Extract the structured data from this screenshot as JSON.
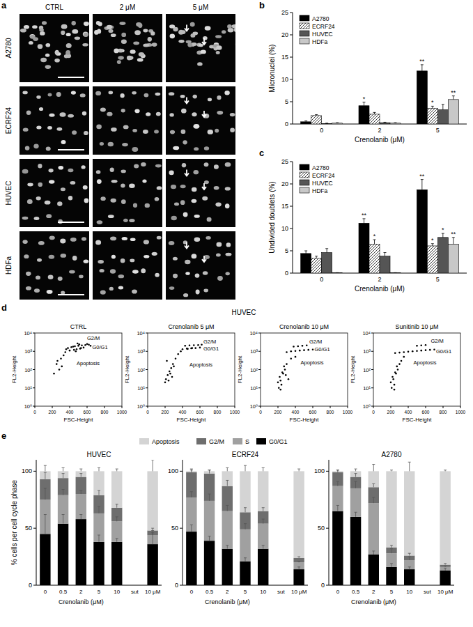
{
  "panels": [
    "a",
    "b",
    "c",
    "d",
    "e"
  ],
  "panel_a": {
    "columns": [
      "CTRL",
      "2 μM",
      "5 μM"
    ],
    "rows": [
      "A2780",
      "ECRF24",
      "HUVEC",
      "HDFa"
    ]
  },
  "panel_d_title": "HUVEC",
  "chart_data": [
    {
      "type": "bar",
      "y_label": "Micronuclei (%)",
      "x_label": "Crenolanib (μM)",
      "categories": [
        "0",
        "2",
        "5"
      ],
      "ylim": [
        0,
        25
      ],
      "yticks": [
        0,
        5,
        10,
        15,
        20,
        25
      ],
      "legend": "upper left",
      "series": [
        {
          "name": "A2780",
          "color": "#000000",
          "values": [
            0.5,
            4.1,
            11.9
          ],
          "errors": [
            0.2,
            0.8,
            1.4
          ],
          "significance": [
            null,
            "*",
            "**"
          ]
        },
        {
          "name": "ECRF24",
          "color": "#ffffff",
          "line_style": "hatched",
          "values": [
            1.9,
            2.2,
            3.5
          ],
          "errors": [
            0.2,
            0.4,
            0.5
          ],
          "significance": [
            null,
            null,
            "*"
          ]
        },
        {
          "name": "HUVEC",
          "color": "#555555",
          "values": [
            0.1,
            0.3,
            3.2
          ],
          "errors": [
            0.1,
            0.1,
            1.2
          ],
          "significance": [
            null,
            null,
            null
          ]
        },
        {
          "name": "HDFa",
          "color": "#c8c8c8",
          "values": [
            0.2,
            0.2,
            5.5
          ],
          "errors": [
            0.1,
            0.1,
            0.8
          ],
          "significance": [
            null,
            null,
            "**"
          ]
        }
      ]
    },
    {
      "type": "bar",
      "y_label": "Undivided doublets (%)",
      "x_label": "Crenolanib (μM)",
      "categories": [
        "0",
        "2",
        "5"
      ],
      "ylim": [
        0,
        25
      ],
      "yticks": [
        0,
        5,
        10,
        15,
        20,
        25
      ],
      "legend": "upper left",
      "series": [
        {
          "name": "A2780",
          "color": "#000000",
          "values": [
            4.4,
            11.2,
            18.7
          ],
          "errors": [
            0.6,
            1.0,
            2.3
          ],
          "significance": [
            null,
            "**",
            "**"
          ]
        },
        {
          "name": "ECRF24",
          "color": "#ffffff",
          "line_style": "hatched",
          "values": [
            3.3,
            6.5,
            6.1
          ],
          "errors": [
            0.5,
            1.0,
            0.5
          ],
          "significance": [
            null,
            "*",
            "*"
          ]
        },
        {
          "name": "HUVEC",
          "color": "#555555",
          "values": [
            4.6,
            3.8,
            8.0
          ],
          "errors": [
            0.9,
            0.8,
            0.9
          ],
          "significance": [
            null,
            null,
            "*"
          ]
        },
        {
          "name": "HDFa",
          "color": "#c8c8c8",
          "values": [
            0.1,
            0.1,
            6.5
          ],
          "errors": [
            0.0,
            0.0,
            1.5
          ],
          "significance": [
            null,
            null,
            "**"
          ]
        }
      ]
    },
    {
      "type": "scatter",
      "title": "CTRL",
      "x_label": "FSC-Height",
      "y_label": "FL2-Height",
      "log": "y",
      "xlim": [
        0,
        1000
      ],
      "xticks": [
        0,
        200,
        400,
        600,
        800,
        1000
      ],
      "ylim": [
        1,
        10000
      ],
      "yticks": [
        {
          "value": 1,
          "label": "10⁰"
        },
        {
          "value": 10,
          "label": "10¹"
        },
        {
          "value": 100,
          "label": "10²"
        },
        {
          "value": 1000,
          "label": "10³"
        },
        {
          "value": 10000,
          "label": "10⁴"
        }
      ],
      "annotations": [
        {
          "text": "G2/M",
          "x": 600,
          "y": 4200
        },
        {
          "text": "G0/G1",
          "x": 660,
          "y": 1300
        },
        {
          "text": "Apoptosis",
          "x": 480,
          "y": 180
        }
      ],
      "color": "#000000",
      "x": [
        380,
        420,
        460,
        500,
        540,
        580,
        620,
        450,
        480,
        520,
        560,
        400,
        440,
        600,
        510,
        470,
        530,
        360,
        640,
        490,
        250,
        300,
        330,
        280,
        220,
        350,
        260,
        310
      ],
      "y": [
        1500,
        1700,
        1900,
        2000,
        2100,
        2200,
        2300,
        1200,
        1300,
        1400,
        1600,
        1100,
        1800,
        2500,
        2400,
        1000,
        1500,
        1300,
        2000,
        2700,
        200,
        400,
        600,
        100,
        60,
        900,
        300,
        150
      ]
    },
    {
      "type": "scatter",
      "title": "Crenolanib 5 μM",
      "x_label": "FSC-Height",
      "y_label": "FL2-Height",
      "log": "y",
      "xlim": [
        0,
        1000
      ],
      "xticks": [
        0,
        200,
        400,
        600,
        800,
        1000
      ],
      "ylim": [
        1,
        10000
      ],
      "yticks": [
        {
          "value": 1,
          "label": "10⁰"
        },
        {
          "value": 10,
          "label": "10¹"
        },
        {
          "value": 100,
          "label": "10²"
        },
        {
          "value": 1000,
          "label": "10³"
        },
        {
          "value": 10000,
          "label": "10⁴"
        }
      ],
      "annotations": [
        {
          "text": "G2/M",
          "x": 640,
          "y": 2600
        },
        {
          "text": "G0/G1",
          "x": 640,
          "y": 1100
        },
        {
          "text": "Apoptosis",
          "x": 480,
          "y": 150
        }
      ],
      "color": "#000000",
      "x": [
        400,
        450,
        500,
        550,
        600,
        430,
        480,
        530,
        580,
        620,
        460,
        510,
        210,
        230,
        250,
        270,
        290,
        220,
        260,
        300,
        240,
        320,
        350,
        280,
        200,
        380
      ],
      "y": [
        1300,
        1400,
        1450,
        1500,
        1600,
        2000,
        2100,
        2150,
        2200,
        2300,
        1350,
        1500,
        30,
        50,
        80,
        120,
        200,
        300,
        60,
        150,
        25,
        400,
        700,
        40,
        20,
        1000
      ]
    },
    {
      "type": "scatter",
      "title": "Crenolanib 10 μM",
      "x_label": "FSC-Height",
      "y_label": "FL2-Height",
      "log": "y",
      "xlim": [
        0,
        1000
      ],
      "xticks": [
        0,
        200,
        400,
        600,
        800,
        1000
      ],
      "ylim": [
        1,
        10000
      ],
      "yticks": [
        {
          "value": 1,
          "label": "10⁰"
        },
        {
          "value": 10,
          "label": "10¹"
        },
        {
          "value": 100,
          "label": "10²"
        },
        {
          "value": 1000,
          "label": "10³"
        },
        {
          "value": 10000,
          "label": "10⁴"
        }
      ],
      "annotations": [
        {
          "text": "G2/M",
          "x": 560,
          "y": 2800
        },
        {
          "text": "G0/G1",
          "x": 620,
          "y": 1000
        },
        {
          "text": "Apoptosis",
          "x": 460,
          "y": 200
        }
      ],
      "color": "#000000",
      "x": [
        300,
        350,
        400,
        450,
        500,
        550,
        600,
        380,
        430,
        480,
        530,
        200,
        220,
        240,
        260,
        280,
        300,
        320,
        210,
        230,
        250,
        270,
        290,
        350,
        400,
        230
      ],
      "y": [
        900,
        1000,
        1050,
        1100,
        1150,
        1200,
        1250,
        1800,
        1900,
        2000,
        2100,
        20,
        40,
        15,
        60,
        100,
        200,
        30,
        10,
        25,
        70,
        150,
        50,
        400,
        500,
        8
      ]
    },
    {
      "type": "scatter",
      "title": "Sunitinib 10 μM",
      "x_label": "FSC-Height",
      "y_label": "FL2-Height",
      "log": "y",
      "xlim": [
        0,
        1000
      ],
      "xticks": [
        0,
        200,
        400,
        600,
        800,
        1000
      ],
      "ylim": [
        1,
        10000
      ],
      "yticks": [
        {
          "value": 1,
          "label": "10⁰"
        },
        {
          "value": 10,
          "label": "10¹"
        },
        {
          "value": 100,
          "label": "10²"
        },
        {
          "value": 1000,
          "label": "10³"
        },
        {
          "value": 10000,
          "label": "10⁴"
        }
      ],
      "annotations": [
        {
          "text": "G2/M",
          "x": 660,
          "y": 3000
        },
        {
          "text": "G0/G1",
          "x": 720,
          "y": 800
        },
        {
          "text": "Apoptosis",
          "x": 460,
          "y": 200
        }
      ],
      "color": "#000000",
      "x": [
        250,
        300,
        350,
        400,
        450,
        500,
        550,
        600,
        650,
        700,
        500,
        550,
        600,
        200,
        220,
        240,
        260,
        280,
        300,
        210,
        230,
        250,
        270,
        320,
        350,
        240
      ],
      "y": [
        800,
        850,
        900,
        950,
        1000,
        1050,
        1100,
        1150,
        1200,
        1250,
        2000,
        2100,
        2200,
        20,
        40,
        15,
        60,
        100,
        200,
        10,
        30,
        70,
        150,
        300,
        500,
        8
      ]
    },
    {
      "type": "bar",
      "stacked": true,
      "title": "HUVEC",
      "y_label": "% cells per cell cycle phase",
      "x_label": "Crenolanib (μM)",
      "categories": [
        "0",
        "0.5",
        "2",
        "5",
        "10",
        "sut",
        "10 μM"
      ],
      "ylim": [
        0,
        110
      ],
      "yticks": [
        0,
        50,
        100
      ],
      "legend": "top",
      "series": [
        {
          "name": "G0/G1",
          "color": "#000000",
          "values": [
            45,
            54,
            58,
            38,
            38,
            null,
            36
          ],
          "errors": [
            17,
            8,
            4,
            6,
            3,
            null,
            10
          ]
        },
        {
          "name": "S",
          "color": "#a0a0a0",
          "values": [
            30,
            25,
            22,
            25,
            18,
            null,
            8
          ],
          "errors": [
            10,
            5,
            3,
            6,
            4,
            null,
            4
          ]
        },
        {
          "name": "G2/M",
          "color": "#6e6e6e",
          "values": [
            18,
            15,
            15,
            16,
            12,
            null,
            4
          ],
          "errors": [
            6,
            4,
            3,
            4,
            3,
            null,
            2
          ]
        },
        {
          "name": "Apoptosis",
          "color": "#d4d4d4",
          "values": [
            7,
            6,
            5,
            21,
            32,
            null,
            52
          ],
          "errors": [
            5,
            3,
            2,
            3,
            2,
            null,
            10
          ]
        }
      ]
    },
    {
      "type": "bar",
      "stacked": true,
      "title": "ECRF24",
      "x_label": "Crenolanib (μM)",
      "categories": [
        "0",
        "0.5",
        "2",
        "5",
        "10",
        "sut",
        "10 μM"
      ],
      "ylim": [
        0,
        110
      ],
      "yticks": [
        0,
        50,
        100
      ],
      "series": [
        {
          "name": "G0/G1",
          "color": "#000000",
          "values": [
            47,
            39,
            32,
            21,
            32,
            null,
            14
          ],
          "errors": [
            6,
            4,
            3,
            3,
            3,
            null,
            2
          ]
        },
        {
          "name": "S",
          "color": "#a0a0a0",
          "values": [
            30,
            35,
            33,
            28,
            22,
            null,
            6
          ],
          "errors": [
            5,
            6,
            5,
            5,
            4,
            null,
            1
          ]
        },
        {
          "name": "G2/M",
          "color": "#6e6e6e",
          "values": [
            22,
            24,
            22,
            15,
            11,
            null,
            4
          ],
          "errors": [
            3,
            3,
            5,
            4,
            3,
            null,
            1
          ]
        },
        {
          "name": "Apoptosis",
          "color": "#d4d4d4",
          "values": [
            1,
            2,
            13,
            36,
            35,
            null,
            76
          ],
          "errors": [
            1,
            1,
            3,
            5,
            3,
            null,
            2
          ]
        }
      ]
    },
    {
      "type": "bar",
      "stacked": true,
      "title": "A2780",
      "x_label": "Crenolanib (μM)",
      "categories": [
        "0",
        "0.5",
        "2",
        "5",
        "10",
        "sut",
        "10 μM"
      ],
      "ylim": [
        0,
        110
      ],
      "yticks": [
        0,
        50,
        100
      ],
      "series": [
        {
          "name": "G0/G1",
          "color": "#000000",
          "values": [
            65,
            60,
            27,
            16,
            14,
            null,
            13
          ],
          "errors": [
            5,
            4,
            3,
            3,
            2,
            null,
            2
          ]
        },
        {
          "name": "S",
          "color": "#a0a0a0",
          "values": [
            22,
            25,
            45,
            12,
            8,
            null,
            3
          ],
          "errors": [
            4,
            6,
            5,
            4,
            3,
            null,
            1
          ]
        },
        {
          "name": "G2/M",
          "color": "#6e6e6e",
          "values": [
            12,
            10,
            14,
            5,
            4,
            null,
            2
          ],
          "errors": [
            2,
            3,
            3,
            2,
            2,
            null,
            1
          ]
        },
        {
          "name": "Apoptosis",
          "color": "#d4d4d4",
          "values": [
            1,
            5,
            14,
            67,
            74,
            null,
            82
          ],
          "errors": [
            1,
            2,
            6,
            1,
            8,
            null,
            1
          ]
        }
      ]
    }
  ]
}
